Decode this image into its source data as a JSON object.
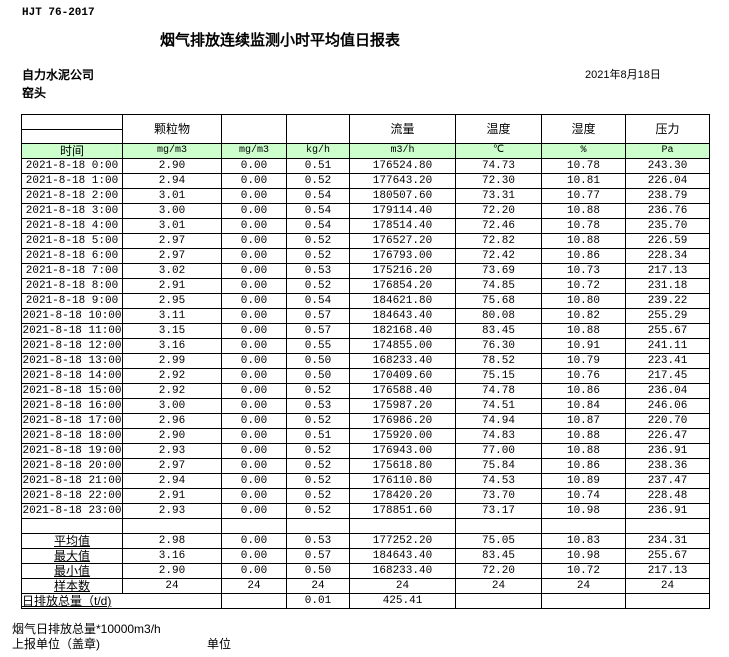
{
  "header": {
    "standard": "HJT  76-2017",
    "title": "烟气排放连续监测小时平均值日报表",
    "company": "自力水泥公司",
    "location": "窑头",
    "date": "2021年8月18日"
  },
  "columns": [
    "颗粒物",
    "",
    "",
    "流量",
    "温度",
    "湿度",
    "压力"
  ],
  "units": [
    "时间",
    "mg/m3",
    "mg/m3",
    "kg/h",
    "m3/h",
    "℃",
    "%",
    "Pa"
  ],
  "rows": [
    [
      "2021-8-18 0:00",
      "2.90",
      "0.00",
      "0.51",
      "176524.80",
      "74.73",
      "10.78",
      "243.30"
    ],
    [
      "2021-8-18 1:00",
      "2.94",
      "0.00",
      "0.52",
      "177643.20",
      "72.30",
      "10.81",
      "226.04"
    ],
    [
      "2021-8-18 2:00",
      "3.01",
      "0.00",
      "0.54",
      "180507.60",
      "73.31",
      "10.77",
      "238.79"
    ],
    [
      "2021-8-18 3:00",
      "3.00",
      "0.00",
      "0.54",
      "179114.40",
      "72.20",
      "10.88",
      "236.76"
    ],
    [
      "2021-8-18 4:00",
      "3.01",
      "0.00",
      "0.54",
      "178514.40",
      "72.46",
      "10.78",
      "235.70"
    ],
    [
      "2021-8-18 5:00",
      "2.97",
      "0.00",
      "0.52",
      "176527.20",
      "72.82",
      "10.88",
      "226.59"
    ],
    [
      "2021-8-18 6:00",
      "2.97",
      "0.00",
      "0.52",
      "176793.00",
      "72.42",
      "10.86",
      "228.34"
    ],
    [
      "2021-8-18 7:00",
      "3.02",
      "0.00",
      "0.53",
      "175216.20",
      "73.69",
      "10.73",
      "217.13"
    ],
    [
      "2021-8-18 8:00",
      "2.91",
      "0.00",
      "0.52",
      "176854.20",
      "74.85",
      "10.72",
      "231.18"
    ],
    [
      "2021-8-18 9:00",
      "2.95",
      "0.00",
      "0.54",
      "184621.80",
      "75.68",
      "10.80",
      "239.22"
    ],
    [
      "2021-8-18 10:00",
      "3.11",
      "0.00",
      "0.57",
      "184643.40",
      "80.08",
      "10.82",
      "255.29"
    ],
    [
      "2021-8-18 11:00",
      "3.15",
      "0.00",
      "0.57",
      "182168.40",
      "83.45",
      "10.88",
      "255.67"
    ],
    [
      "2021-8-18 12:00",
      "3.16",
      "0.00",
      "0.55",
      "174855.00",
      "76.30",
      "10.91",
      "241.11"
    ],
    [
      "2021-8-18 13:00",
      "2.99",
      "0.00",
      "0.50",
      "168233.40",
      "78.52",
      "10.79",
      "223.41"
    ],
    [
      "2021-8-18 14:00",
      "2.92",
      "0.00",
      "0.50",
      "170409.60",
      "75.15",
      "10.76",
      "217.45"
    ],
    [
      "2021-8-18 15:00",
      "2.92",
      "0.00",
      "0.52",
      "176588.40",
      "74.78",
      "10.86",
      "236.04"
    ],
    [
      "2021-8-18 16:00",
      "3.00",
      "0.00",
      "0.53",
      "175987.20",
      "74.51",
      "10.84",
      "246.06"
    ],
    [
      "2021-8-18 17:00",
      "2.96",
      "0.00",
      "0.52",
      "176986.20",
      "74.94",
      "10.87",
      "220.70"
    ],
    [
      "2021-8-18 18:00",
      "2.90",
      "0.00",
      "0.51",
      "175920.00",
      "74.83",
      "10.88",
      "226.47"
    ],
    [
      "2021-8-18 19:00",
      "2.93",
      "0.00",
      "0.52",
      "176943.00",
      "77.00",
      "10.88",
      "236.91"
    ],
    [
      "2021-8-18 20:00",
      "2.97",
      "0.00",
      "0.52",
      "175618.80",
      "75.84",
      "10.86",
      "238.36"
    ],
    [
      "2021-8-18 21:00",
      "2.94",
      "0.00",
      "0.52",
      "176110.80",
      "74.53",
      "10.89",
      "237.47"
    ],
    [
      "2021-8-18 22:00",
      "2.91",
      "0.00",
      "0.52",
      "178420.20",
      "73.70",
      "10.74",
      "228.48"
    ],
    [
      "2021-8-18 23:00",
      "2.93",
      "0.00",
      "0.52",
      "178851.60",
      "73.17",
      "10.98",
      "236.91"
    ]
  ],
  "stats": [
    [
      "平均值",
      "2.98",
      "0.00",
      "0.53",
      "177252.20",
      "75.05",
      "10.83",
      "234.31"
    ],
    [
      "最大值",
      "3.16",
      "0.00",
      "0.57",
      "184643.40",
      "83.45",
      "10.98",
      "255.67"
    ],
    [
      "最小值",
      "2.90",
      "0.00",
      "0.50",
      "168233.40",
      "72.20",
      "10.72",
      "217.13"
    ],
    [
      "样本数",
      "24",
      "24",
      "24",
      "24",
      "24",
      "24",
      "24"
    ]
  ],
  "total": {
    "label": "日排放总量（t/d)",
    "kg": "0.01",
    "flow": "425.41"
  },
  "footer": {
    "note": "烟气日排放总量*10000m3/h",
    "report_unit": "上报单位（盖章)",
    "unit": "单位"
  }
}
